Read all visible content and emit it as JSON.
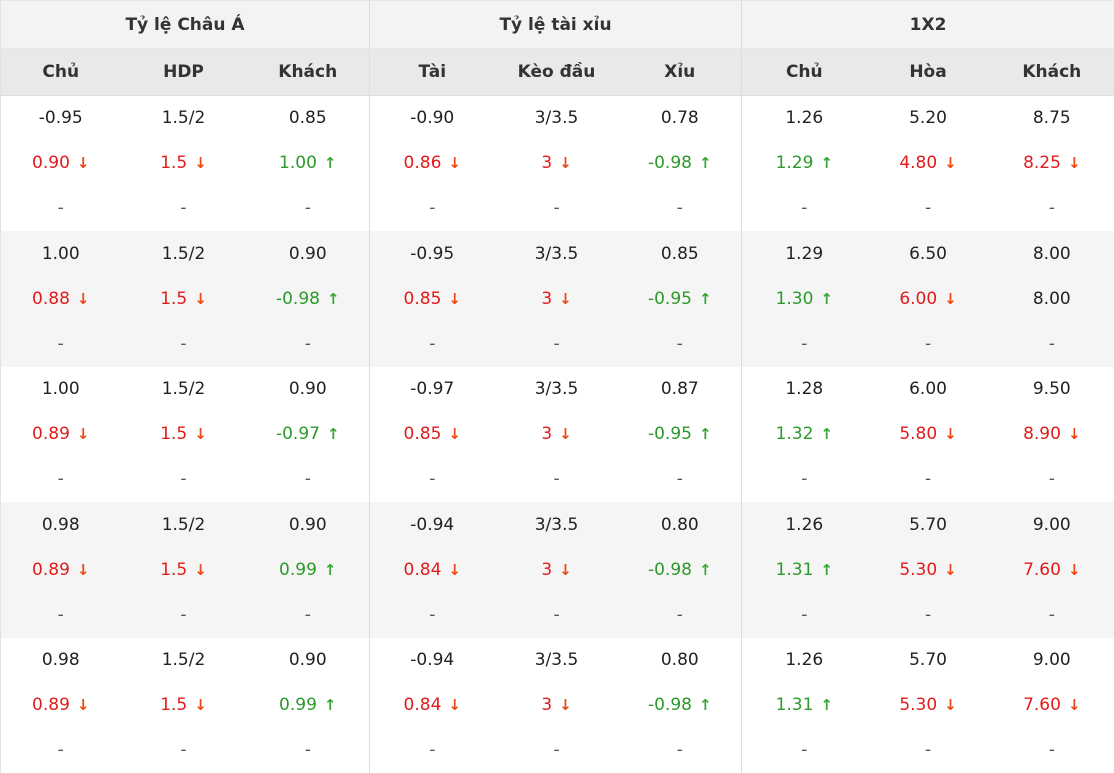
{
  "headers": {
    "asian": {
      "title": "Tỷ lệ Châu Á",
      "cols": [
        "Chủ",
        "HDP",
        "Khách"
      ]
    },
    "ou": {
      "title": "Tỷ lệ tài xỉu",
      "cols": [
        "Tài",
        "Kèo đầu",
        "Xỉu"
      ]
    },
    "x12": {
      "title": "1X2",
      "cols": [
        "Chủ",
        "Hòa",
        "Khách"
      ]
    }
  },
  "arrow_up_icon": "↑",
  "arrow_down_icon": "↓",
  "colors": {
    "down": "#e21b1b",
    "up": "#2b9a2b"
  },
  "rows": [
    {
      "open": [
        "-0.95",
        "1.5/2",
        "0.85",
        "-0.90",
        "3/3.5",
        "0.78",
        "1.26",
        "5.20",
        "8.75"
      ],
      "live": [
        {
          "v": "0.90",
          "t": "down"
        },
        {
          "v": "1.5",
          "t": "down"
        },
        {
          "v": "1.00",
          "t": "up"
        },
        {
          "v": "0.86",
          "t": "down"
        },
        {
          "v": "3",
          "t": "down"
        },
        {
          "v": "-0.98",
          "t": "up"
        },
        {
          "v": "1.29",
          "t": "up"
        },
        {
          "v": "4.80",
          "t": "down"
        },
        {
          "v": "8.25",
          "t": "down"
        }
      ],
      "close": [
        "-",
        "-",
        "-",
        "-",
        "-",
        "-",
        "-",
        "-",
        "-"
      ]
    },
    {
      "open": [
        "1.00",
        "1.5/2",
        "0.90",
        "-0.95",
        "3/3.5",
        "0.85",
        "1.29",
        "6.50",
        "8.00"
      ],
      "live": [
        {
          "v": "0.88",
          "t": "down"
        },
        {
          "v": "1.5",
          "t": "down"
        },
        {
          "v": "-0.98",
          "t": "up"
        },
        {
          "v": "0.85",
          "t": "down"
        },
        {
          "v": "3",
          "t": "down"
        },
        {
          "v": "-0.95",
          "t": "up"
        },
        {
          "v": "1.30",
          "t": "up"
        },
        {
          "v": "6.00",
          "t": "down"
        },
        {
          "v": "8.00",
          "t": "none"
        }
      ],
      "close": [
        "-",
        "-",
        "-",
        "-",
        "-",
        "-",
        "-",
        "-",
        "-"
      ]
    },
    {
      "open": [
        "1.00",
        "1.5/2",
        "0.90",
        "-0.97",
        "3/3.5",
        "0.87",
        "1.28",
        "6.00",
        "9.50"
      ],
      "live": [
        {
          "v": "0.89",
          "t": "down"
        },
        {
          "v": "1.5",
          "t": "down"
        },
        {
          "v": "-0.97",
          "t": "up"
        },
        {
          "v": "0.85",
          "t": "down"
        },
        {
          "v": "3",
          "t": "down"
        },
        {
          "v": "-0.95",
          "t": "up"
        },
        {
          "v": "1.32",
          "t": "up"
        },
        {
          "v": "5.80",
          "t": "down"
        },
        {
          "v": "8.90",
          "t": "down"
        }
      ],
      "close": [
        "-",
        "-",
        "-",
        "-",
        "-",
        "-",
        "-",
        "-",
        "-"
      ]
    },
    {
      "open": [
        "0.98",
        "1.5/2",
        "0.90",
        "-0.94",
        "3/3.5",
        "0.80",
        "1.26",
        "5.70",
        "9.00"
      ],
      "live": [
        {
          "v": "0.89",
          "t": "down"
        },
        {
          "v": "1.5",
          "t": "down"
        },
        {
          "v": "0.99",
          "t": "up"
        },
        {
          "v": "0.84",
          "t": "down"
        },
        {
          "v": "3",
          "t": "down"
        },
        {
          "v": "-0.98",
          "t": "up"
        },
        {
          "v": "1.31",
          "t": "up"
        },
        {
          "v": "5.30",
          "t": "down"
        },
        {
          "v": "7.60",
          "t": "down"
        }
      ],
      "close": [
        "-",
        "-",
        "-",
        "-",
        "-",
        "-",
        "-",
        "-",
        "-"
      ]
    },
    {
      "open": [
        "0.98",
        "1.5/2",
        "0.90",
        "-0.94",
        "3/3.5",
        "0.80",
        "1.26",
        "5.70",
        "9.00"
      ],
      "live": [
        {
          "v": "0.89",
          "t": "down"
        },
        {
          "v": "1.5",
          "t": "down"
        },
        {
          "v": "0.99",
          "t": "up"
        },
        {
          "v": "0.84",
          "t": "down"
        },
        {
          "v": "3",
          "t": "down"
        },
        {
          "v": "-0.98",
          "t": "up"
        },
        {
          "v": "1.31",
          "t": "up"
        },
        {
          "v": "5.30",
          "t": "down"
        },
        {
          "v": "7.60",
          "t": "down"
        }
      ],
      "close": [
        "-",
        "-",
        "-",
        "-",
        "-",
        "-",
        "-",
        "-",
        "-"
      ]
    }
  ]
}
